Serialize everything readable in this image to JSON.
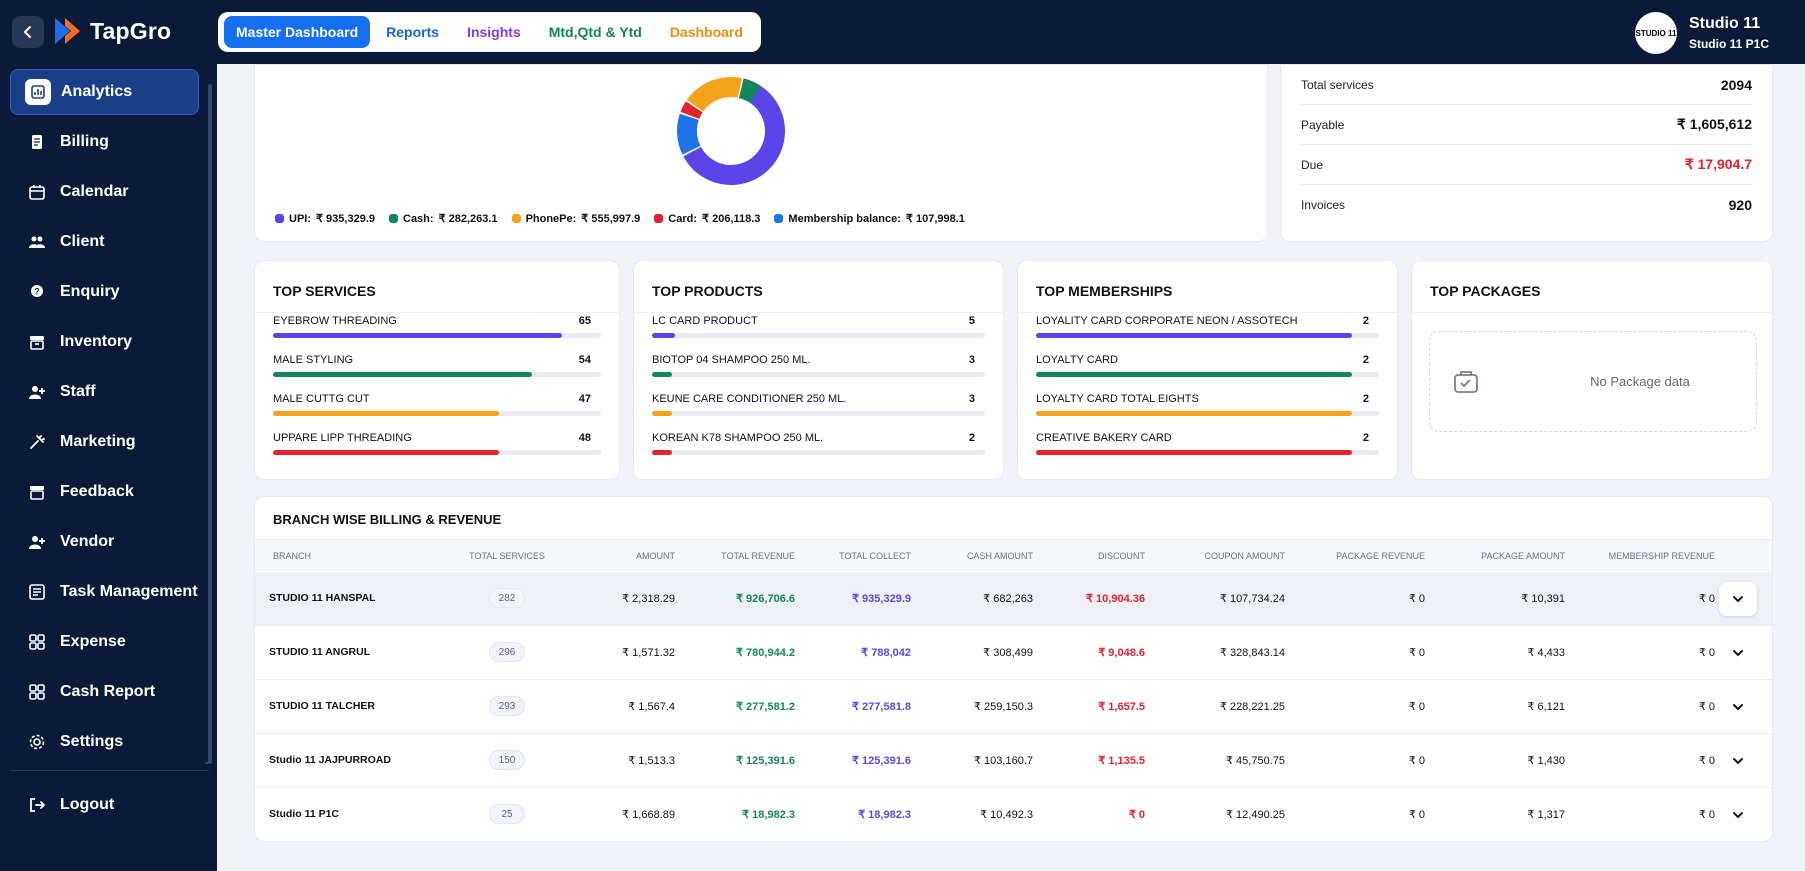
{
  "app": {
    "name": "TapGro"
  },
  "tabs": [
    {
      "label": "Master Dashboard",
      "color": "#ffffff"
    },
    {
      "label": "Reports",
      "color": "#1565d8"
    },
    {
      "label": "Insights",
      "color": "#7c3aed"
    },
    {
      "label": "Mtd,Qtd & Ytd",
      "color": "#12864f"
    },
    {
      "label": "Dashboard",
      "color": "#f08c0a"
    }
  ],
  "studio": {
    "name": "Studio 11",
    "branch": "Studio 11 P1C",
    "avatar_text": "STUDIO 11"
  },
  "sidebar": {
    "items": [
      {
        "label": "Analytics",
        "icon": "analytics-icon",
        "active": true
      },
      {
        "label": "Billing",
        "icon": "billing-icon"
      },
      {
        "label": "Calendar",
        "icon": "calendar-icon"
      },
      {
        "label": "Client",
        "icon": "client-icon"
      },
      {
        "label": "Enquiry",
        "icon": "enquiry-icon"
      },
      {
        "label": "Inventory",
        "icon": "inventory-icon"
      },
      {
        "label": "Staff",
        "icon": "staff-icon"
      },
      {
        "label": "Marketing",
        "icon": "marketing-icon"
      },
      {
        "label": "Feedback",
        "icon": "feedback-icon"
      },
      {
        "label": "Vendor",
        "icon": "vendor-icon"
      },
      {
        "label": "Task Management",
        "icon": "task-icon"
      },
      {
        "label": "Expense",
        "icon": "expense-icon"
      },
      {
        "label": "Cash Report",
        "icon": "cash-report-icon"
      },
      {
        "label": "Settings",
        "icon": "settings-icon"
      }
    ],
    "logout": "Logout"
  },
  "payments": {
    "legend": [
      {
        "label": "UPI:",
        "value": "₹ 935,329.9",
        "color": "#5b45e8"
      },
      {
        "label": "Cash:",
        "value": "₹ 282,263.1",
        "color": "#12875a"
      },
      {
        "label": "PhonePe:",
        "value": "₹ 555,997.9",
        "color": "#f5a31b"
      },
      {
        "label": "Card:",
        "value": "₹ 206,118.3",
        "color": "#e3222c"
      },
      {
        "label": "Membership balance:",
        "value": "₹ 107,998.1",
        "color": "#2174e8"
      }
    ],
    "donut_fractions": [
      0.64,
      0.06,
      0.19,
      0.04,
      0.13
    ]
  },
  "summary": [
    {
      "label": "Total services",
      "value": "2094",
      "color": "#111111"
    },
    {
      "label": "Payable",
      "value": "₹ 1,605,612",
      "color": "#111111"
    },
    {
      "label": "Due",
      "value": "₹ 17,904.7",
      "color": "#e3222c"
    },
    {
      "label": "Invoices",
      "value": "920",
      "color": "#111111"
    }
  ],
  "top_services": {
    "title": "TOP SERVICES",
    "items": [
      {
        "label": "EYEBROW THREADING",
        "count": "65",
        "fill": 0.88,
        "color": "#5b45e8"
      },
      {
        "label": "MALE STYLING",
        "count": "54",
        "fill": 0.79,
        "color": "#12875a"
      },
      {
        "label": "MALE CUTTG CUT",
        "count": "47",
        "fill": 0.69,
        "color": "#f5a31b"
      },
      {
        "label": "UPPARE LIPP THREADING",
        "count": "48",
        "fill": 0.69,
        "color": "#e3222c"
      }
    ]
  },
  "top_products": {
    "title": "TOP PRODUCTS",
    "items": [
      {
        "label": "LC CARD PRODUCT",
        "count": "5",
        "fill": 0.07,
        "color": "#5b45e8"
      },
      {
        "label": "BIOTOP 04 SHAMPOO 250 ML.",
        "count": "3",
        "fill": 0.06,
        "color": "#12875a"
      },
      {
        "label": "KEUNE CARE CONDITIONER 250 ML.",
        "count": "3",
        "fill": 0.06,
        "color": "#f5a31b"
      },
      {
        "label": "KOREAN K78 SHAMPOO 250 ML.",
        "count": "2",
        "fill": 0.06,
        "color": "#e3222c"
      }
    ]
  },
  "top_memberships": {
    "title": "TOP MEMBERSHIPS",
    "items": [
      {
        "label": "LOYALITY CARD CORPORATE NEON / ASSOTECH",
        "count": "2",
        "fill": 0.92,
        "color": "#5b45e8"
      },
      {
        "label": "LOYALTY CARD",
        "count": "2",
        "fill": 0.92,
        "color": "#12875a"
      },
      {
        "label": "LOYALTY CARD TOTAL EIGHTS",
        "count": "2",
        "fill": 0.92,
        "color": "#f5a31b"
      },
      {
        "label": "CREATIVE BAKERY CARD",
        "count": "2",
        "fill": 0.92,
        "color": "#e3222c"
      }
    ]
  },
  "top_packages": {
    "title": "TOP PACKAGES",
    "empty": "No Package data"
  },
  "branch_table": {
    "title": "BRANCH WISE BILLING & REVENUE",
    "headers": [
      "BRANCH",
      "TOTAL SERVICES",
      "AMOUNT",
      "TOTAL REVENUE",
      "TOTAL COLLECT",
      "CASH AMOUNT",
      "DISCOUNT",
      "COUPON AMOUNT",
      "PACKAGE REVENUE",
      "PACKAGE AMOUNT",
      "MEMBERSHIP REVENUE"
    ],
    "rows": [
      {
        "branch": "STUDIO 11 HANSPAL",
        "services": "282",
        "amount": "₹ 2,318.29",
        "revenue": "₹ 926,706.6",
        "collect": "₹ 935,329.9",
        "cash": "₹ 682,263",
        "discount": "₹ 10,904.36",
        "coupon": "₹ 107,734.24",
        "pkg_rev": "₹ 0",
        "pkg_amt": "₹ 10,391",
        "mem_rev": "₹ 0"
      },
      {
        "branch": "STUDIO 11 ANGRUL",
        "services": "296",
        "amount": "₹ 1,571.32",
        "revenue": "₹ 780,944.2",
        "collect": "₹ 788,042",
        "cash": "₹ 308,499",
        "discount": "₹ 9,048.6",
        "coupon": "₹ 328,843.14",
        "pkg_rev": "₹ 0",
        "pkg_amt": "₹ 4,433",
        "mem_rev": "₹ 0"
      },
      {
        "branch": "STUDIO 11 TALCHER",
        "services": "293",
        "amount": "₹ 1,567.4",
        "revenue": "₹ 277,581.2",
        "collect": "₹ 277,581.8",
        "cash": "₹ 259,150.3",
        "discount": "₹ 1,657.5",
        "coupon": "₹ 228,221.25",
        "pkg_rev": "₹ 0",
        "pkg_amt": "₹ 6,121",
        "mem_rev": "₹ 0"
      },
      {
        "branch": "Studio 11 JAJPURROAD",
        "services": "150",
        "amount": "₹ 1,513.3",
        "revenue": "₹ 125,391.6",
        "collect": "₹ 125,391.6",
        "cash": "₹ 103,160.7",
        "discount": "₹ 1,135.5",
        "coupon": "₹ 45,750.75",
        "pkg_rev": "₹ 0",
        "pkg_amt": "₹ 1,430",
        "mem_rev": "₹ 0"
      },
      {
        "branch": "Studio 11 P1C",
        "services": "25",
        "amount": "₹ 1,668.89",
        "revenue": "₹ 18,982.3",
        "collect": "₹ 18,982.3",
        "cash": "₹ 10,492.3",
        "discount": "₹ 0",
        "coupon": "₹ 12,490.25",
        "pkg_rev": "₹ 0",
        "pkg_amt": "₹ 1,317",
        "mem_rev": "₹ 0"
      }
    ],
    "colors": {
      "revenue": "#12875a",
      "collect": "#5b45e8",
      "discount": "#e3222c"
    }
  }
}
